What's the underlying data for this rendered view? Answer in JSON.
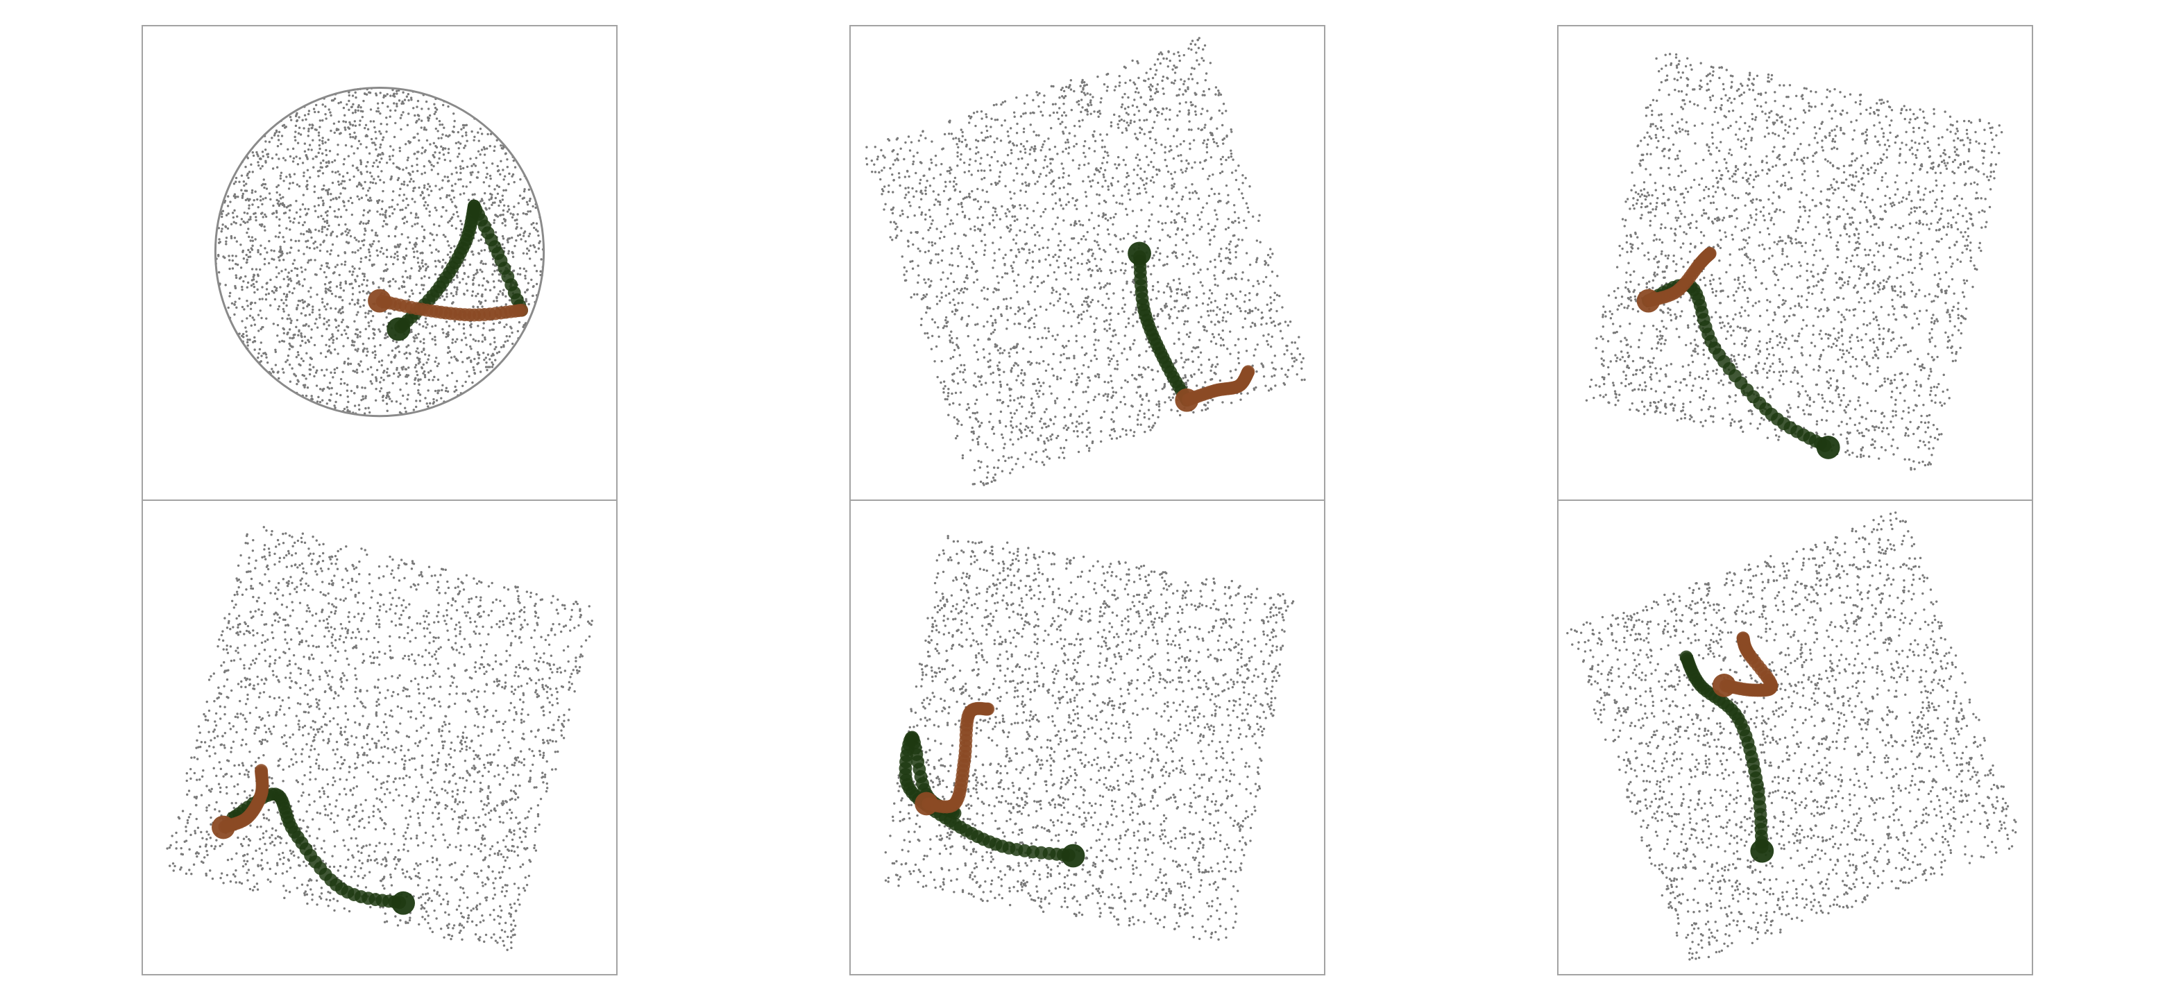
{
  "chart_data": [
    {
      "type": "scatter",
      "panel": "top-left",
      "cloud": {
        "shape": "disc",
        "color": "#7a7a7a",
        "count": 2600,
        "seed": 11
      },
      "trajectories": [
        {
          "color": "#1e3a12",
          "points": [
            [
              0.54,
              0.64
            ],
            [
              0.62,
              0.56
            ],
            [
              0.68,
              0.46
            ],
            [
              0.7,
              0.38
            ]
          ],
          "mid": [
            [
              0.7,
              0.38
            ],
            [
              0.75,
              0.48
            ],
            [
              0.8,
              0.6
            ]
          ]
        },
        {
          "color": "#8b4a24",
          "points": [
            [
              0.5,
              0.58
            ],
            [
              0.6,
              0.6
            ],
            [
              0.7,
              0.61
            ],
            [
              0.8,
              0.6
            ]
          ]
        }
      ]
    },
    {
      "type": "scatter",
      "panel": "top-middle",
      "cloud": {
        "shape": "rotated-square",
        "angle": -18,
        "color": "#7a7a7a",
        "count": 2600,
        "seed": 23
      },
      "trajectories": [
        {
          "color": "#1e3a12",
          "points": [
            [
              0.61,
              0.48
            ],
            [
              0.62,
              0.6
            ],
            [
              0.66,
              0.7
            ],
            [
              0.71,
              0.79
            ]
          ]
        },
        {
          "color": "#8b4a24",
          "points": [
            [
              0.71,
              0.79
            ],
            [
              0.77,
              0.77
            ],
            [
              0.82,
              0.76
            ],
            [
              0.84,
              0.73
            ]
          ]
        }
      ]
    },
    {
      "type": "scatter",
      "panel": "top-right",
      "cloud": {
        "shape": "rotated-square",
        "angle": 12,
        "color": "#7a7a7a",
        "count": 2600,
        "seed": 37
      },
      "trajectories": [
        {
          "color": "#1e3a12",
          "points": [
            [
              0.57,
              0.89
            ],
            [
              0.45,
              0.82
            ],
            [
              0.33,
              0.68
            ],
            [
              0.28,
              0.55
            ],
            [
              0.19,
              0.58
            ]
          ]
        },
        {
          "color": "#8b4a24",
          "points": [
            [
              0.19,
              0.58
            ],
            [
              0.25,
              0.56
            ],
            [
              0.3,
              0.5
            ],
            [
              0.32,
              0.48
            ]
          ]
        }
      ]
    },
    {
      "type": "scatter",
      "panel": "bottom-left",
      "cloud": {
        "shape": "rotated-square",
        "angle": 14,
        "color": "#7a7a7a",
        "count": 2600,
        "seed": 41
      },
      "trajectories": [
        {
          "color": "#1e3a12",
          "points": [
            [
              0.55,
              0.85
            ],
            [
              0.42,
              0.82
            ],
            [
              0.32,
              0.7
            ],
            [
              0.28,
              0.62
            ],
            [
              0.19,
              0.67
            ]
          ]
        },
        {
          "color": "#8b4a24",
          "points": [
            [
              0.17,
              0.69
            ],
            [
              0.22,
              0.67
            ],
            [
              0.25,
              0.62
            ],
            [
              0.25,
              0.57
            ]
          ]
        }
      ]
    },
    {
      "type": "scatter",
      "panel": "bottom-middle",
      "cloud": {
        "shape": "rotated-square",
        "angle": 10,
        "color": "#7a7a7a",
        "count": 2600,
        "seed": 53
      },
      "trajectories": [
        {
          "color": "#1e3a12",
          "points": [
            [
              0.47,
              0.75
            ],
            [
              0.32,
              0.73
            ],
            [
              0.2,
              0.67
            ],
            [
              0.12,
              0.6
            ],
            [
              0.13,
              0.5
            ],
            [
              0.16,
              0.62
            ],
            [
              0.22,
              0.66
            ]
          ]
        },
        {
          "color": "#8b4a24",
          "points": [
            [
              0.16,
              0.64
            ],
            [
              0.22,
              0.64
            ],
            [
              0.24,
              0.55
            ],
            [
              0.25,
              0.45
            ],
            [
              0.29,
              0.44
            ]
          ]
        }
      ]
    },
    {
      "type": "scatter",
      "panel": "bottom-right",
      "cloud": {
        "shape": "rotated-square",
        "angle": -20,
        "color": "#7a7a7a",
        "count": 2600,
        "seed": 67
      },
      "trajectories": [
        {
          "color": "#1e3a12",
          "points": [
            [
              0.43,
              0.74
            ],
            [
              0.42,
              0.6
            ],
            [
              0.38,
              0.46
            ],
            [
              0.3,
              0.39
            ],
            [
              0.27,
              0.33
            ]
          ]
        },
        {
          "color": "#8b4a24",
          "points": [
            [
              0.35,
              0.39
            ],
            [
              0.41,
              0.4
            ],
            [
              0.45,
              0.39
            ],
            [
              0.4,
              0.32
            ],
            [
              0.39,
              0.29
            ]
          ]
        }
      ]
    }
  ]
}
